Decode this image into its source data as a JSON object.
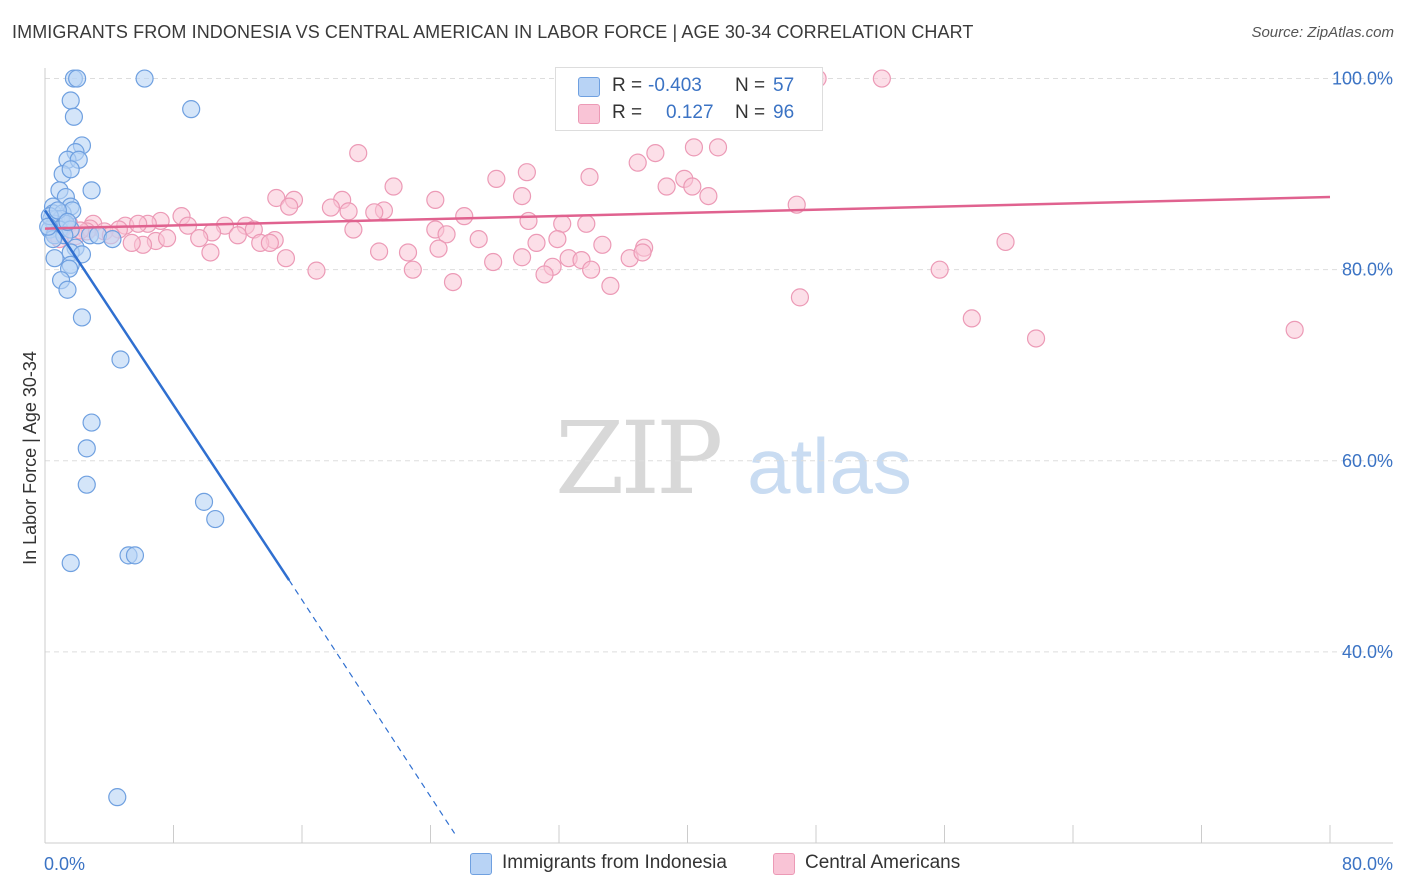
{
  "header": {
    "title": "IMMIGRANTS FROM INDONESIA VS CENTRAL AMERICAN IN LABOR FORCE | AGE 30-34 CORRELATION CHART",
    "source": "Source: ZipAtlas.com"
  },
  "legend": {
    "rows": [
      {
        "r_label": "R = ",
        "r_value": "-0.403",
        "n_label": "N = ",
        "n_value": "57"
      },
      {
        "r_label": "R = ",
        "r_value": "0.127",
        "n_label": "N = ",
        "n_value": "96"
      }
    ]
  },
  "watermark": {
    "zip": "ZIP",
    "atlas": "atlas"
  },
  "colors": {
    "indonesia_fill": "#b8d3f5",
    "indonesia_stroke": "#6fa0e0",
    "indonesia_line": "#2f6fd0",
    "central_fill": "#f9c4d6",
    "central_stroke": "#ec9ab6",
    "central_line": "#e0628f",
    "grid": "#dddddd",
    "tick_text": "#3b73c4"
  },
  "chart_data": {
    "type": "scatter",
    "title": "IMMIGRANTS FROM INDONESIA VS CENTRAL AMERICAN IN LABOR FORCE | AGE 30-34 CORRELATION CHART",
    "xlabel": "",
    "ylabel": "In Labor Force | Age 30-34",
    "xlim": [
      0,
      80
    ],
    "ylim": [
      20,
      101
    ],
    "x_tick_labels": [
      "0.0%",
      "80.0%"
    ],
    "y_ticks": [
      40,
      60,
      80,
      100
    ],
    "y_tick_labels": [
      "40.0%",
      "60.0%",
      "80.0%",
      "100.0%"
    ],
    "series": [
      {
        "name": "Immigrants from Indonesia",
        "color": "#b8d3f5",
        "points": [
          [
            1.8,
            100
          ],
          [
            2.0,
            100
          ],
          [
            6.2,
            100
          ],
          [
            1.6,
            97.7
          ],
          [
            1.8,
            96
          ],
          [
            9.1,
            96.8
          ],
          [
            2.3,
            93
          ],
          [
            1.9,
            92.3
          ],
          [
            1.4,
            91.5
          ],
          [
            2.1,
            91.5
          ],
          [
            1.1,
            90
          ],
          [
            1.6,
            90.5
          ],
          [
            0.9,
            88.3
          ],
          [
            2.9,
            88.3
          ],
          [
            1.3,
            87.6
          ],
          [
            0.5,
            86.6
          ],
          [
            1.6,
            86.6
          ],
          [
            0.5,
            85.9
          ],
          [
            1.1,
            85.9
          ],
          [
            1.7,
            86.2
          ],
          [
            0.4,
            85.3
          ],
          [
            0.7,
            85.3
          ],
          [
            1.0,
            85.3
          ],
          [
            0.6,
            84.8
          ],
          [
            1.3,
            84.8
          ],
          [
            0.9,
            84.2
          ],
          [
            0.3,
            84.2
          ],
          [
            1.6,
            84.2
          ],
          [
            0.6,
            83.6
          ],
          [
            1.2,
            83.6
          ],
          [
            2.8,
            83.6
          ],
          [
            3.3,
            83.6
          ],
          [
            4.2,
            83.2
          ],
          [
            0.5,
            83.2
          ],
          [
            1.9,
            82.3
          ],
          [
            1.6,
            81.8
          ],
          [
            0.6,
            81.2
          ],
          [
            2.3,
            81.6
          ],
          [
            1.6,
            80.5
          ],
          [
            1.5,
            80.1
          ],
          [
            1.0,
            78.9
          ],
          [
            1.4,
            77.9
          ],
          [
            2.3,
            75
          ],
          [
            4.7,
            70.6
          ],
          [
            2.9,
            64
          ],
          [
            2.6,
            61.3
          ],
          [
            2.6,
            57.5
          ],
          [
            9.9,
            55.7
          ],
          [
            10.6,
            53.9
          ],
          [
            5.2,
            50.1
          ],
          [
            5.6,
            50.1
          ],
          [
            1.6,
            49.3
          ],
          [
            4.5,
            24.8
          ],
          [
            0.3,
            85.6
          ],
          [
            0.8,
            86.2
          ],
          [
            1.4,
            85.0
          ],
          [
            0.2,
            84.5
          ]
        ]
      },
      {
        "name": "Central Americans",
        "color": "#f9c4d6",
        "points": [
          [
            43.3,
            100
          ],
          [
            48.1,
            100
          ],
          [
            52.1,
            100
          ],
          [
            45.0,
            96
          ],
          [
            19.5,
            92.2
          ],
          [
            38.0,
            92.2
          ],
          [
            40.4,
            92.8
          ],
          [
            41.9,
            92.8
          ],
          [
            36.9,
            91.2
          ],
          [
            30.0,
            90.2
          ],
          [
            33.9,
            89.7
          ],
          [
            28.1,
            89.5
          ],
          [
            39.8,
            89.5
          ],
          [
            21.7,
            88.7
          ],
          [
            38.7,
            88.7
          ],
          [
            40.3,
            88.7
          ],
          [
            14.4,
            87.5
          ],
          [
            15.5,
            87.3
          ],
          [
            18.5,
            87.3
          ],
          [
            24.3,
            87.3
          ],
          [
            29.7,
            87.7
          ],
          [
            41.3,
            87.7
          ],
          [
            15.2,
            86.6
          ],
          [
            17.8,
            86.5
          ],
          [
            21.1,
            86.2
          ],
          [
            46.8,
            86.8
          ],
          [
            18.9,
            86.1
          ],
          [
            20.5,
            86.0
          ],
          [
            26.1,
            85.6
          ],
          [
            8.5,
            85.6
          ],
          [
            30.1,
            85.1
          ],
          [
            7.2,
            85.1
          ],
          [
            6.4,
            84.8
          ],
          [
            3.0,
            84.8
          ],
          [
            5.0,
            84.6
          ],
          [
            8.9,
            84.6
          ],
          [
            11.2,
            84.6
          ],
          [
            12.5,
            84.6
          ],
          [
            13.0,
            84.2
          ],
          [
            19.2,
            84.2
          ],
          [
            24.3,
            84.2
          ],
          [
            32.2,
            84.8
          ],
          [
            33.7,
            84.8
          ],
          [
            2.8,
            84.3
          ],
          [
            1.5,
            84.8
          ],
          [
            4.6,
            84.2
          ],
          [
            10.4,
            83.9
          ],
          [
            12.0,
            83.6
          ],
          [
            25.0,
            83.7
          ],
          [
            27.0,
            83.2
          ],
          [
            6.9,
            83.0
          ],
          [
            7.6,
            83.3
          ],
          [
            9.6,
            83.3
          ],
          [
            14.3,
            83.1
          ],
          [
            6.1,
            82.6
          ],
          [
            5.4,
            82.8
          ],
          [
            13.4,
            82.8
          ],
          [
            14.0,
            82.8
          ],
          [
            30.6,
            82.8
          ],
          [
            31.9,
            83.2
          ],
          [
            34.7,
            82.6
          ],
          [
            59.8,
            82.9
          ],
          [
            20.8,
            81.9
          ],
          [
            22.6,
            81.8
          ],
          [
            24.5,
            82.2
          ],
          [
            37.3,
            82.3
          ],
          [
            10.3,
            81.8
          ],
          [
            15.0,
            81.2
          ],
          [
            27.9,
            80.8
          ],
          [
            29.7,
            81.3
          ],
          [
            32.6,
            81.2
          ],
          [
            33.4,
            81.0
          ],
          [
            36.4,
            81.2
          ],
          [
            37.2,
            81.8
          ],
          [
            16.9,
            79.9
          ],
          [
            22.9,
            80.0
          ],
          [
            31.6,
            80.3
          ],
          [
            34.0,
            80.0
          ],
          [
            55.7,
            80.0
          ],
          [
            31.1,
            79.5
          ],
          [
            25.4,
            78.7
          ],
          [
            35.2,
            78.3
          ],
          [
            47.0,
            77.1
          ],
          [
            57.7,
            74.9
          ],
          [
            61.7,
            72.8
          ],
          [
            77.8,
            73.7
          ],
          [
            2.6,
            84.0
          ],
          [
            1.0,
            84.0
          ],
          [
            0.6,
            83.8
          ],
          [
            1.9,
            83.5
          ],
          [
            3.7,
            84.0
          ],
          [
            4.1,
            83.6
          ],
          [
            0.9,
            83.2
          ],
          [
            1.2,
            84.5
          ],
          [
            5.8,
            84.8
          ],
          [
            2.2,
            84.1
          ]
        ]
      }
    ],
    "trend_lines": [
      {
        "series": "Immigrants from Indonesia",
        "x0": 0,
        "y0": 86.2,
        "x1": 15.2,
        "y1": 47.5,
        "dashed_to_x": 25.5,
        "dashed_to_y": 21.0
      },
      {
        "series": "Central Americans",
        "x0": 0,
        "y0": 84.3,
        "x1": 80,
        "y1": 87.6
      }
    ],
    "legend_placement": "top-center"
  }
}
